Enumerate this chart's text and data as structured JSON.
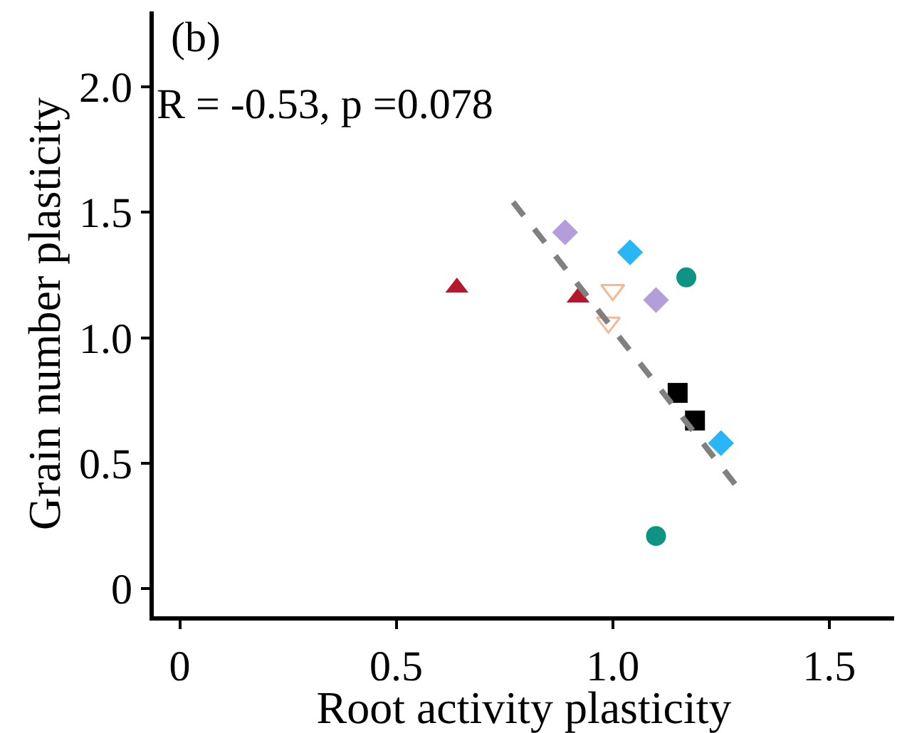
{
  "chart_data": {
    "type": "scatter",
    "title": "(b)",
    "xlabel": "Root activity plasticity",
    "ylabel": "Grain number plasticity",
    "annotations": [
      "R = -0.53, p =0.078"
    ],
    "xlim": [
      -0.06,
      1.65
    ],
    "xticks": [
      0,
      {
        "value": 0.5,
        "label": "0.5"
      },
      {
        "value": 1,
        "label": "1.0"
      },
      {
        "value": 1.5,
        "label": "1.5"
      }
    ],
    "ylim": [
      -0.11,
      2.3
    ],
    "yticks": [
      0,
      {
        "value": 0.5,
        "label": "0.5"
      },
      {
        "value": 1,
        "label": "1.0"
      },
      {
        "value": 1.5,
        "label": "1.5"
      },
      {
        "value": 2,
        "label": "2.0"
      }
    ],
    "series": [
      {
        "color": "#b5172b",
        "marker": "triangle",
        "x": [
          0.64,
          0.92
        ],
        "values": [
          1.2,
          1.16
        ]
      },
      {
        "color": "#f4b990",
        "marker": "triangle-down-open",
        "x": [
          1.0,
          0.99
        ],
        "values": [
          1.19,
          1.06
        ]
      },
      {
        "color": "#b39ddb",
        "marker": "diamond",
        "x": [
          0.89,
          1.1
        ],
        "values": [
          1.42,
          1.15
        ]
      },
      {
        "color": "#29b6f6",
        "marker": "diamond",
        "x": [
          1.04,
          1.25
        ],
        "values": [
          1.34,
          0.58
        ]
      },
      {
        "color": "#0e9384",
        "marker": "circle",
        "x": [
          1.17,
          1.1
        ],
        "values": [
          1.24,
          0.21
        ]
      },
      {
        "color": "#000000",
        "marker": "square",
        "x": [
          1.15,
          1.19
        ],
        "values": [
          0.78,
          0.67
        ]
      },
      {
        "type": "line",
        "color": "#808080",
        "line_style": "dashed",
        "marker": "none",
        "x": [
          0.77,
          1.29
        ],
        "values": [
          1.54,
          0.4
        ]
      }
    ]
  }
}
